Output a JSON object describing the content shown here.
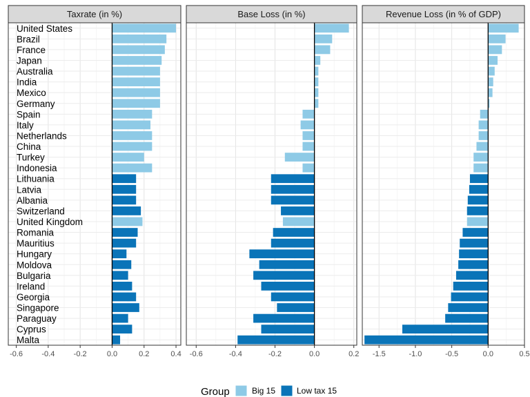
{
  "chart_data": {
    "type": "bar",
    "orientation": "horizontal",
    "countries": [
      "United States",
      "Brazil",
      "France",
      "Japan",
      "Australia",
      "India",
      "Mexico",
      "Germany",
      "Spain",
      "Italy",
      "Netherlands",
      "China",
      "Turkey",
      "Indonesia",
      "Lithuania",
      "Latvia",
      "Albania",
      "Switzerland",
      "United Kingdom",
      "Romania",
      "Mauritius",
      "Hungary",
      "Moldova",
      "Bulgaria",
      "Ireland",
      "Georgia",
      "Singapore",
      "Paraguay",
      "Cyprus",
      "Malta"
    ],
    "groups": [
      "Big 15",
      "Big 15",
      "Big 15",
      "Big 15",
      "Big 15",
      "Big 15",
      "Big 15",
      "Big 15",
      "Big 15",
      "Big 15",
      "Big 15",
      "Big 15",
      "Big 15",
      "Big 15",
      "Low tax 15",
      "Low tax 15",
      "Low tax 15",
      "Low tax 15",
      "Big 15",
      "Low tax 15",
      "Low tax 15",
      "Low tax 15",
      "Low tax 15",
      "Low tax 15",
      "Low tax 15",
      "Low tax 15",
      "Low tax 15",
      "Low tax 15",
      "Low tax 15",
      "Low tax 15"
    ],
    "panels": [
      {
        "title": "Taxrate (in %)",
        "xlim": [
          -0.65,
          0.43
        ],
        "ticks": [
          -0.6,
          -0.4,
          -0.2,
          0.0,
          0.2,
          0.4
        ],
        "tick_labels": [
          "-0.6",
          "-0.4",
          "-0.2",
          "0.0",
          "0.2",
          "0.4"
        ],
        "values": [
          0.4,
          0.34,
          0.33,
          0.31,
          0.3,
          0.3,
          0.3,
          0.3,
          0.25,
          0.24,
          0.25,
          0.25,
          0.2,
          0.25,
          0.15,
          0.15,
          0.15,
          0.18,
          0.19,
          0.16,
          0.15,
          0.09,
          0.12,
          0.1,
          0.125,
          0.15,
          0.17,
          0.1,
          0.125,
          0.05
        ]
      },
      {
        "title": "Base Loss (in %)",
        "xlim": [
          -0.65,
          0.215
        ],
        "ticks": [
          -0.6,
          -0.4,
          -0.2,
          0.0,
          0.2
        ],
        "tick_labels": [
          "-0.6",
          "-0.4",
          "-0.2",
          "0.0",
          "0.2"
        ],
        "values": [
          0.175,
          0.09,
          0.08,
          0.03,
          0.02,
          0.02,
          0.02,
          0.02,
          -0.06,
          -0.07,
          -0.06,
          -0.06,
          -0.15,
          -0.06,
          -0.22,
          -0.22,
          -0.22,
          -0.17,
          -0.16,
          -0.21,
          -0.22,
          -0.33,
          -0.28,
          -0.31,
          -0.27,
          -0.22,
          -0.19,
          -0.31,
          -0.27,
          -0.39
        ]
      },
      {
        "title": "Revenue Loss (in % of GDP)",
        "xlim": [
          -1.73,
          0.5
        ],
        "ticks": [
          -1.5,
          -1.0,
          -0.5,
          0.0,
          0.5
        ],
        "tick_labels": [
          "-1.5",
          "-1.0",
          "-0.5",
          "0.0",
          "0.5"
        ],
        "values": [
          0.42,
          0.24,
          0.19,
          0.13,
          0.09,
          0.07,
          0.06,
          0.02,
          -0.11,
          -0.13,
          -0.13,
          -0.16,
          -0.2,
          -0.2,
          -0.25,
          -0.26,
          -0.28,
          -0.29,
          -0.29,
          -0.35,
          -0.39,
          -0.4,
          -0.41,
          -0.44,
          -0.48,
          -0.51,
          -0.55,
          -0.59,
          -1.18,
          -1.7
        ]
      }
    ],
    "legend": {
      "title": "Group",
      "position": "bottom",
      "entries": [
        {
          "label": "Big 15",
          "color": "#8ecae6"
        },
        {
          "label": "Low tax 15",
          "color": "#0a74b8"
        }
      ]
    },
    "grid": true
  }
}
